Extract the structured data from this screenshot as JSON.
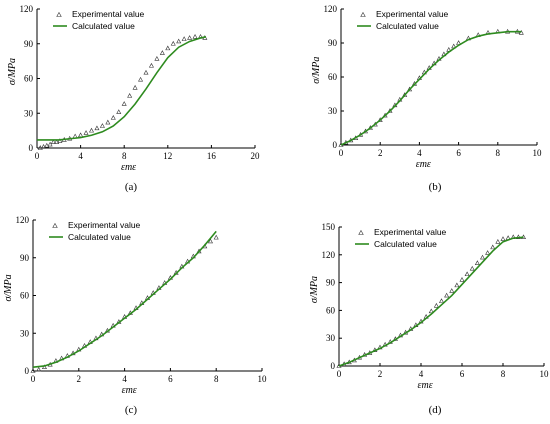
{
  "chart_data": [
    {
      "type": "scatter+line",
      "caption": "(a)",
      "xlabel": "εmε",
      "ylabel": "σ/MPa",
      "xlim": [
        0,
        20
      ],
      "ylim": [
        0,
        120
      ],
      "xticks": [
        "0",
        "4",
        "8",
        "12",
        "16",
        "20"
      ],
      "yticks": [
        "0",
        "30",
        "60",
        "90",
        "120"
      ],
      "legend": [
        "Experimental value",
        "Calculated value"
      ],
      "legend_position": "top-left",
      "series": [
        {
          "name": "Experimental value",
          "style": "open-triangle",
          "x": [
            0.3,
            0.6,
            0.9,
            1.2,
            1.5,
            1.8,
            2.1,
            2.5,
            3,
            3.5,
            4,
            4.5,
            5,
            5.5,
            6,
            6.5,
            7,
            7.5,
            8,
            8.5,
            9,
            9.5,
            10,
            10.5,
            11,
            11.5,
            12,
            12.5,
            13,
            13.5,
            14,
            14.5,
            15,
            15.4
          ],
          "y": [
            0,
            1,
            2,
            3,
            5,
            5,
            6,
            7,
            8,
            10,
            11,
            13,
            15,
            17,
            19,
            22,
            26,
            31,
            38,
            45,
            52,
            59,
            65,
            71,
            77,
            82,
            86,
            90,
            92,
            94,
            95,
            96,
            96,
            95
          ]
        },
        {
          "name": "Calculated value",
          "style": "line",
          "x": [
            0,
            1,
            2,
            3,
            4,
            5,
            6,
            7,
            8,
            9,
            10,
            11,
            12,
            13,
            14,
            15,
            15.5
          ],
          "y": [
            7,
            7,
            7,
            8,
            9,
            11,
            14,
            19,
            27,
            38,
            51,
            65,
            78,
            87,
            92,
            95,
            96
          ]
        }
      ]
    },
    {
      "type": "scatter+line",
      "caption": "(b)",
      "xlabel": "εmε",
      "ylabel": "σ/MPa",
      "xlim": [
        0,
        10
      ],
      "ylim": [
        0,
        120
      ],
      "xticks": [
        "0",
        "2",
        "4",
        "6",
        "8",
        "10"
      ],
      "yticks": [
        "0",
        "30",
        "60",
        "90",
        "120"
      ],
      "legend": [
        "Experimental value",
        "Calculated value"
      ],
      "legend_position": "top-left",
      "series": [
        {
          "name": "Experimental value",
          "style": "open-triangle",
          "x": [
            0,
            0.25,
            0.5,
            0.75,
            1,
            1.25,
            1.5,
            1.75,
            2,
            2.25,
            2.5,
            2.75,
            3,
            3.25,
            3.5,
            3.75,
            4,
            4.25,
            4.5,
            4.75,
            5,
            5.25,
            5.5,
            5.75,
            6,
            6.5,
            7,
            7.5,
            8,
            8.5,
            9,
            9.2
          ],
          "y": [
            0,
            2,
            4,
            6,
            9,
            12,
            15,
            18,
            22,
            26,
            30,
            35,
            40,
            44,
            49,
            54,
            59,
            64,
            68,
            72,
            76,
            80,
            84,
            87,
            90,
            94,
            97,
            99,
            100,
            100,
            100,
            99
          ]
        },
        {
          "name": "Calculated value",
          "style": "line",
          "x": [
            0,
            0.5,
            1,
            1.5,
            2,
            2.5,
            3,
            3.5,
            4,
            4.5,
            5,
            5.5,
            6,
            6.5,
            7,
            7.5,
            8,
            8.5,
            9,
            9.2
          ],
          "y": [
            0,
            4,
            9,
            15,
            22,
            30,
            39,
            49,
            58,
            67,
            75,
            82,
            88,
            93,
            96,
            98,
            99,
            100,
            100,
            100
          ]
        }
      ]
    },
    {
      "type": "scatter+line",
      "caption": "(c)",
      "xlabel": "εmε",
      "ylabel": "σ/MPa",
      "xlim": [
        0,
        10
      ],
      "ylim": [
        0,
        120
      ],
      "xticks": [
        "0",
        "2",
        "4",
        "6",
        "8",
        "10"
      ],
      "yticks": [
        "0",
        "30",
        "60",
        "90",
        "120"
      ],
      "legend": [
        "Experimental value",
        "Calculated value"
      ],
      "legend_position": "top-left",
      "series": [
        {
          "name": "Experimental value",
          "style": "open-triangle",
          "x": [
            0,
            0.25,
            0.5,
            0.75,
            1,
            1.25,
            1.5,
            1.75,
            2,
            2.25,
            2.5,
            2.75,
            3,
            3.25,
            3.5,
            3.75,
            4,
            4.25,
            4.5,
            4.75,
            5,
            5.25,
            5.5,
            5.75,
            6,
            6.25,
            6.5,
            6.75,
            7,
            7.25,
            7.5,
            7.75,
            8
          ],
          "y": [
            0,
            1,
            3,
            5,
            8,
            10,
            12,
            14,
            17,
            20,
            23,
            26,
            29,
            32,
            36,
            39,
            43,
            46,
            50,
            54,
            58,
            62,
            66,
            70,
            74,
            78,
            83,
            87,
            91,
            95,
            99,
            103,
            106
          ]
        },
        {
          "name": "Calculated value",
          "style": "line",
          "x": [
            0,
            0.5,
            1,
            1.5,
            2,
            2.5,
            3,
            3.5,
            4,
            4.5,
            5,
            5.5,
            6,
            6.5,
            7,
            7.5,
            8
          ],
          "y": [
            3,
            4,
            7,
            11,
            16,
            22,
            28,
            35,
            42,
            49,
            57,
            65,
            73,
            82,
            90,
            100,
            111
          ]
        }
      ]
    },
    {
      "type": "scatter+line",
      "caption": "(d)",
      "xlabel": "εmε",
      "ylabel": "σ/MPa",
      "xlim": [
        0,
        10
      ],
      "ylim": [
        0,
        150
      ],
      "xticks": [
        "0",
        "2",
        "4",
        "6",
        "8",
        "10"
      ],
      "yticks": [
        "0",
        "30",
        "60",
        "90",
        "120",
        "150"
      ],
      "legend": [
        "Experimental value",
        "Calculated value"
      ],
      "legend_position": "top-left",
      "series": [
        {
          "name": "Experimental value",
          "style": "open-triangle",
          "x": [
            0,
            0.25,
            0.5,
            0.75,
            1,
            1.25,
            1.5,
            1.75,
            2,
            2.25,
            2.5,
            2.75,
            3,
            3.25,
            3.5,
            3.75,
            4,
            4.25,
            4.5,
            4.75,
            5,
            5.25,
            5.5,
            5.75,
            6,
            6.25,
            6.5,
            6.75,
            7,
            7.25,
            7.5,
            7.75,
            8,
            8.25,
            8.5,
            8.75,
            9
          ],
          "y": [
            0,
            2,
            4,
            6,
            9,
            12,
            14,
            17,
            20,
            23,
            26,
            29,
            33,
            36,
            40,
            44,
            48,
            53,
            59,
            65,
            70,
            76,
            81,
            87,
            93,
            99,
            105,
            111,
            117,
            122,
            128,
            134,
            137,
            138,
            139,
            139,
            139
          ]
        },
        {
          "name": "Calculated value",
          "style": "line",
          "x": [
            0,
            0.5,
            1,
            1.5,
            2,
            2.5,
            3,
            3.5,
            4,
            4.5,
            5,
            5.5,
            6,
            6.5,
            7,
            7.5,
            8,
            8.5,
            9
          ],
          "y": [
            0,
            4,
            9,
            14,
            19,
            25,
            32,
            39,
            47,
            56,
            66,
            76,
            88,
            100,
            112,
            124,
            134,
            138,
            139
          ]
        }
      ]
    }
  ],
  "colors": {
    "experimental": "#333333",
    "calculated": "#2e8b1f",
    "axis": "#000000"
  }
}
